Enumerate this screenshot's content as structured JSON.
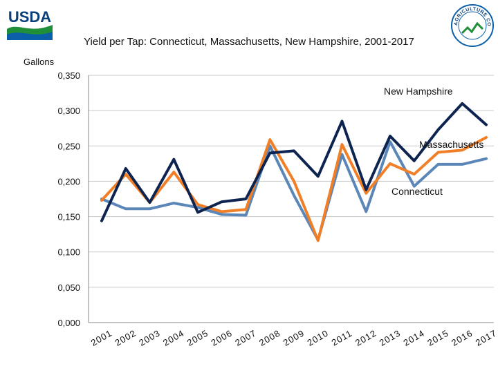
{
  "header": {
    "logo_text": "USDA",
    "seal_text": "AGRICULTURE COUNTS"
  },
  "chart_data": {
    "type": "line",
    "title": "Yield per Tap: Connecticut, Massachusetts, New Hampshire, 2001-2017",
    "xlabel": "",
    "ylabel": "Gallons",
    "ylim": [
      0,
      0.35
    ],
    "grid": true,
    "categories": [
      "2001",
      "2002",
      "2003",
      "2004",
      "2005",
      "2006",
      "2007",
      "2008",
      "2009",
      "2010",
      "2011",
      "2012",
      "2013",
      "2014",
      "2015",
      "2016",
      "2017"
    ],
    "y_tick_labels": [
      "0,000",
      "0,050",
      "0,100",
      "0,150",
      "0,200",
      "0,250",
      "0,300",
      "0,350"
    ],
    "series": [
      {
        "name": "Connecticut",
        "color": "#5b87b8",
        "values": [
          0.175,
          0.161,
          0.161,
          0.169,
          0.163,
          0.153,
          0.152,
          0.25,
          0.18,
          0.117,
          0.238,
          0.157,
          0.256,
          0.193,
          0.224,
          0.224,
          0.232
        ]
      },
      {
        "name": "Massachusetts",
        "color": "#f07f27",
        "values": [
          0.173,
          0.21,
          0.17,
          0.213,
          0.167,
          0.157,
          0.16,
          0.259,
          0.2,
          0.116,
          0.252,
          0.183,
          0.225,
          0.21,
          0.241,
          0.244,
          0.262
        ]
      },
      {
        "name": "New Hampshire",
        "color": "#0d2451",
        "values": [
          0.144,
          0.218,
          0.17,
          0.231,
          0.156,
          0.171,
          0.175,
          0.24,
          0.243,
          0.207,
          0.285,
          0.188,
          0.264,
          0.229,
          0.273,
          0.31,
          0.28
        ]
      }
    ]
  }
}
